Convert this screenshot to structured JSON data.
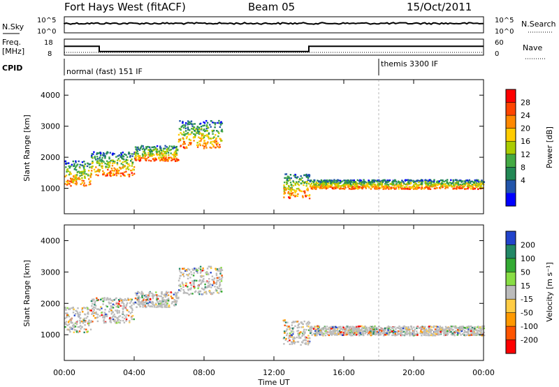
{
  "header": {
    "site": "Fort Hays West (fitACF)",
    "beam": "Beam 05",
    "date": "15/Oct/2011"
  },
  "top_strip": {
    "nsky_label": "N.Sky",
    "nsky_ticks": [
      "10^5",
      "10^0"
    ],
    "nsearch_label": "N.Search",
    "nsearch_ticks": [
      "10^5",
      "10^0"
    ],
    "freq_label_1": "Freq.",
    "freq_label_2": "[MHz]",
    "freq_ticks": [
      "18",
      "8"
    ],
    "nave_label": "Nave",
    "nave_ticks": [
      "60",
      "0"
    ],
    "cpid_label": "CPID",
    "cpid_segments": [
      {
        "start_hour": 0,
        "name": "normal (fast) 151 IF"
      },
      {
        "start_hour": 18,
        "name": "themis 3300 IF"
      }
    ],
    "freq_steps": [
      {
        "from_hour": 0,
        "to_hour": 2,
        "mhz": 13.5
      },
      {
        "from_hour": 2,
        "to_hour": 14,
        "mhz": 10.3
      },
      {
        "from_hour": 14,
        "to_hour": 24,
        "mhz": 13.5
      }
    ]
  },
  "axes": {
    "y_label": "Slant Range [km]",
    "x_label": "Time UT",
    "x_ticks": [
      "00:00",
      "04:00",
      "08:00",
      "12:00",
      "16:00",
      "20:00",
      "00:00"
    ],
    "x_tick_hours": [
      0,
      4,
      8,
      12,
      16,
      20,
      24
    ],
    "x_range_hours": [
      0,
      24
    ],
    "y_range_km": [
      180,
      4500
    ],
    "y_ticks": [
      1000,
      2000,
      3000,
      4000
    ]
  },
  "power_colorbar": {
    "label": "Power [dB]",
    "ticks": [
      "28",
      "24",
      "20",
      "16",
      "12",
      "8",
      "4"
    ],
    "colors": [
      "#ff0000",
      "#ff4400",
      "#ff8800",
      "#ffcc00",
      "#aacc00",
      "#44aa44",
      "#228855",
      "#2255aa",
      "#0000ff"
    ]
  },
  "velocity_colorbar": {
    "label": "Velocity [m s⁻¹]",
    "ticks": [
      "200",
      "100",
      "50",
      "15",
      "-15",
      "-50",
      "-100",
      "-200"
    ],
    "colors": [
      "#2244cc",
      "#228866",
      "#33aa33",
      "#88dd44",
      "#bbbbbb",
      "#ffcc44",
      "#ff9900",
      "#ff5500",
      "#ff0000"
    ]
  },
  "chart_data": {
    "type": "heatmap",
    "title": "Fort Hays West (fitACF)",
    "xlabel": "Time UT",
    "ylabel": "Slant Range [km]",
    "xlim_hours": [
      0,
      24
    ],
    "ylim_km": [
      180,
      4500
    ],
    "panels": [
      "Power [dB]",
      "Velocity [m s⁻¹]"
    ],
    "scatter_bands": [
      {
        "from_hour": 0.0,
        "to_hour": 1.5,
        "range_from_km": 1100,
        "range_to_km": 1900
      },
      {
        "from_hour": 1.5,
        "to_hour": 4.0,
        "range_from_km": 1400,
        "range_to_km": 2200
      },
      {
        "from_hour": 4.0,
        "to_hour": 6.5,
        "range_from_km": 1900,
        "range_to_km": 2400
      },
      {
        "from_hour": 6.5,
        "to_hour": 9.0,
        "range_from_km": 2300,
        "range_to_km": 3200
      },
      {
        "from_hour": 12.5,
        "to_hour": 14.0,
        "range_from_km": 700,
        "range_to_km": 1500
      },
      {
        "from_hour": 14.0,
        "to_hour": 24.0,
        "range_from_km": 1000,
        "range_to_km": 1300
      }
    ]
  }
}
